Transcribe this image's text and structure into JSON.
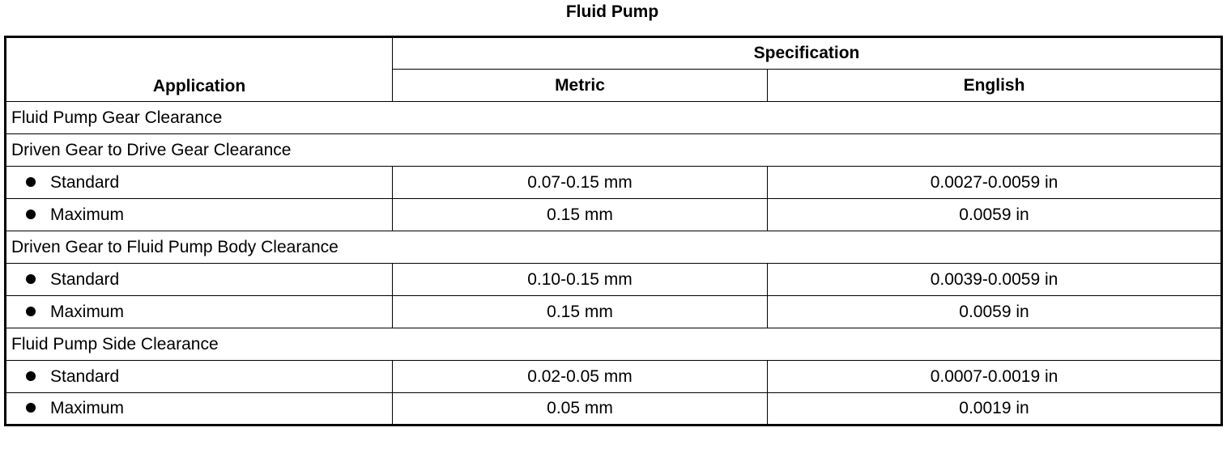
{
  "title": "Fluid Pump",
  "table": {
    "header": {
      "application": "Application",
      "specification": "Specification",
      "metric": "Metric",
      "english": "English"
    },
    "rows": [
      {
        "group": "Fluid Pump Gear Clearance"
      },
      {
        "group": "Driven Gear to Drive Gear Clearance"
      },
      {
        "label": "Standard",
        "metric": "0.07-0.15 mm",
        "english": "0.0027-0.0059 in"
      },
      {
        "label": "Maximum",
        "metric": "0.15 mm",
        "english": "0.0059 in"
      },
      {
        "group": "Driven Gear to Fluid Pump Body Clearance"
      },
      {
        "label": "Standard",
        "metric": "0.10-0.15 mm",
        "english": "0.0039-0.0059 in"
      },
      {
        "label": "Maximum",
        "metric": "0.15 mm",
        "english": "0.0059 in"
      },
      {
        "group": "Fluid Pump Side Clearance"
      },
      {
        "label": "Standard",
        "metric": "0.02-0.05 mm",
        "english": "0.0007-0.0019 in"
      },
      {
        "label": "Maximum",
        "metric": "0.05 mm",
        "english": "0.0019 in"
      }
    ]
  }
}
